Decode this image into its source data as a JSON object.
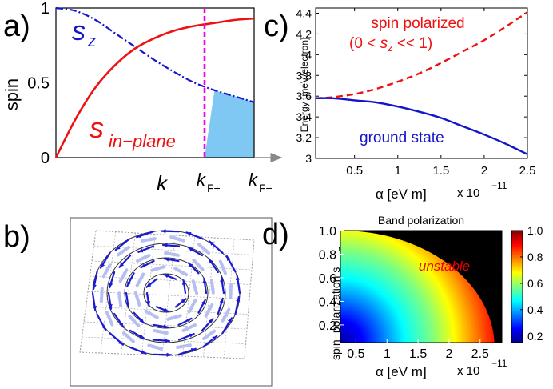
{
  "panel_labels": {
    "a": "a)",
    "b": "b)",
    "c": "c)",
    "d": "d)"
  },
  "colors": {
    "red": "#ee1111",
    "blue": "#1414cc",
    "magenta": "#ee00ee",
    "fill": "#80c8f4"
  },
  "chart_data": [
    {
      "id": "a",
      "type": "line",
      "ylabel": "spin",
      "xlabel": "k",
      "yticks": [
        "0",
        "0.5",
        "1"
      ],
      "xticks": [
        "k_F+",
        "k_F−"
      ],
      "xtick_main": [
        "k",
        "k"
      ],
      "xtick_sub": [
        "F+",
        "F−"
      ],
      "ylim": [
        0,
        1
      ],
      "x_normalized": [
        0,
        0.1,
        0.2,
        0.3,
        0.4,
        0.5,
        0.6,
        0.7,
        0.8,
        0.9,
        1.0
      ],
      "series": [
        {
          "name": "s_z",
          "label_main": "s",
          "label_sub": "z",
          "style": "dash-dot",
          "color": "#1414cc",
          "values": [
            1.0,
            0.98,
            0.92,
            0.83,
            0.74,
            0.65,
            0.57,
            0.5,
            0.45,
            0.41,
            0.37
          ]
        },
        {
          "name": "s_in-plane",
          "label_main": "s",
          "label_sub": "in−plane",
          "style": "solid",
          "color": "#ee1111",
          "values": [
            0.0,
            0.26,
            0.47,
            0.62,
            0.73,
            0.8,
            0.85,
            0.88,
            0.9,
            0.92,
            0.93
          ]
        }
      ],
      "vline_at": 0.75,
      "shaded_between": [
        0.75,
        1.0
      ]
    },
    {
      "id": "c",
      "type": "line",
      "ylabel": "Energy [meV/electron]",
      "xlabel": "α [eV m]",
      "x_exponent_label": "x 10",
      "x_exponent": "−11",
      "xticks": [
        "0.5",
        "1",
        "1.5",
        "2",
        "2.5"
      ],
      "xtick_values": [
        0.5,
        1,
        1.5,
        2,
        2.5
      ],
      "yticks": [
        "3",
        "3.2",
        "3.4",
        "3.6",
        "3.8",
        "4",
        "4.2",
        "4.4"
      ],
      "ytick_values": [
        3,
        3.2,
        3.4,
        3.6,
        3.8,
        4,
        4.2,
        4.4
      ],
      "xlim": [
        0.05,
        2.5
      ],
      "ylim": [
        3.0,
        4.45
      ],
      "x": [
        0.05,
        0.25,
        0.5,
        0.75,
        1.0,
        1.25,
        1.5,
        1.75,
        2.0,
        2.25,
        2.5
      ],
      "series": [
        {
          "name": "spin polarized",
          "style": "dashed",
          "color": "#ee1111",
          "values": [
            3.58,
            3.59,
            3.62,
            3.67,
            3.74,
            3.82,
            3.92,
            4.03,
            4.14,
            4.27,
            4.41
          ]
        },
        {
          "name": "ground state",
          "style": "solid",
          "color": "#1414cc",
          "values": [
            3.58,
            3.58,
            3.56,
            3.54,
            3.5,
            3.45,
            3.39,
            3.31,
            3.23,
            3.14,
            3.04
          ]
        }
      ],
      "annotations": {
        "top_line": "spin polarized",
        "cond_open": "(0 < ",
        "cond_var": "s",
        "cond_sub": "z",
        "cond_close": " << 1)",
        "bottom": "ground state"
      }
    },
    {
      "id": "d",
      "type": "heatmap",
      "title": "Band polarization",
      "ylabel": "spin−polarization s",
      "ylabel_sub": "z",
      "xlabel": "α [eV m]",
      "x_exponent_label": "x 10",
      "x_exponent": "−11",
      "xticks": [
        "0.5",
        "1",
        "1.5",
        "2",
        "2.5"
      ],
      "xtick_values": [
        0.5,
        1,
        1.5,
        2,
        2.5
      ],
      "yticks": [
        "0.2",
        "0.4",
        "0.6",
        "0.8",
        "1.0"
      ],
      "ytick_values": [
        0.2,
        0.4,
        0.6,
        0.8,
        1.0
      ],
      "xlim": [
        0.25,
        2.85
      ],
      "ylim": [
        0.05,
        1.0
      ],
      "colorbar": {
        "ticks": [
          "0.2",
          "0.4",
          "0.6",
          "0.8",
          "1.0"
        ],
        "tick_values": [
          0.2,
          0.4,
          0.6,
          0.8,
          1.0
        ],
        "range": [
          0.15,
          1.0
        ],
        "colormap": "jet"
      },
      "annotation": "unstable"
    }
  ],
  "panel_b": {
    "description_free": true
  }
}
